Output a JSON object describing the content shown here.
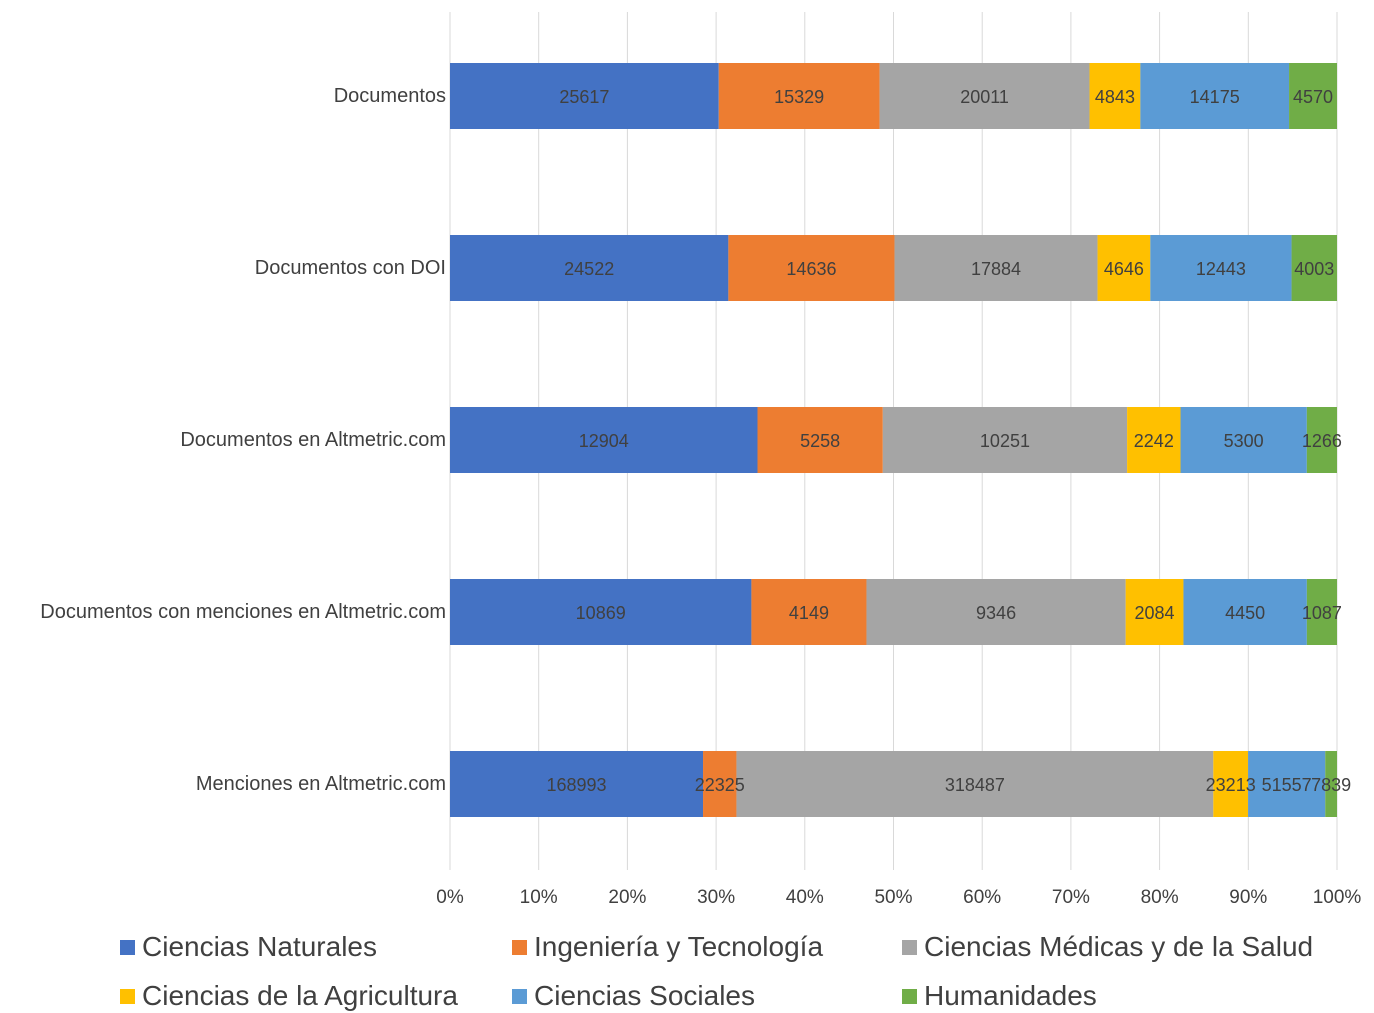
{
  "chart_data": {
    "type": "bar",
    "orientation": "horizontal",
    "stacked": "percent",
    "categories": [
      "Documentos",
      "Documentos con DOI",
      "Documentos en Altmetric.com",
      "Documentos con menciones en Altmetric.com",
      "Menciones en Altmetric.com"
    ],
    "series": [
      {
        "name": "Ciencias Naturales",
        "color": "#4472c4",
        "values": [
          25617,
          24522,
          12904,
          10869,
          168993
        ]
      },
      {
        "name": "Ingeniería y Tecnología",
        "color": "#ed7d31",
        "values": [
          15329,
          14636,
          5258,
          4149,
          22325
        ]
      },
      {
        "name": "Ciencias Médicas y de la Salud",
        "color": "#a5a5a5",
        "values": [
          20011,
          17884,
          10251,
          9346,
          318487
        ]
      },
      {
        "name": "Ciencias de la Agricultura",
        "color": "#ffc000",
        "values": [
          4843,
          4646,
          2242,
          2084,
          23213
        ]
      },
      {
        "name": "Ciencias Sociales",
        "color": "#5b9bd5",
        "values": [
          14175,
          12443,
          5300,
          4450,
          51557
        ]
      },
      {
        "name": "Humanidades",
        "color": "#70ad47",
        "values": [
          4570,
          4003,
          1266,
          1087,
          7839
        ]
      }
    ],
    "x_ticks": [
      "0%",
      "10%",
      "20%",
      "30%",
      "40%",
      "50%",
      "60%",
      "70%",
      "80%",
      "90%",
      "100%"
    ],
    "xlim": [
      0,
      100
    ],
    "grid": true,
    "legend_position": "bottom"
  }
}
